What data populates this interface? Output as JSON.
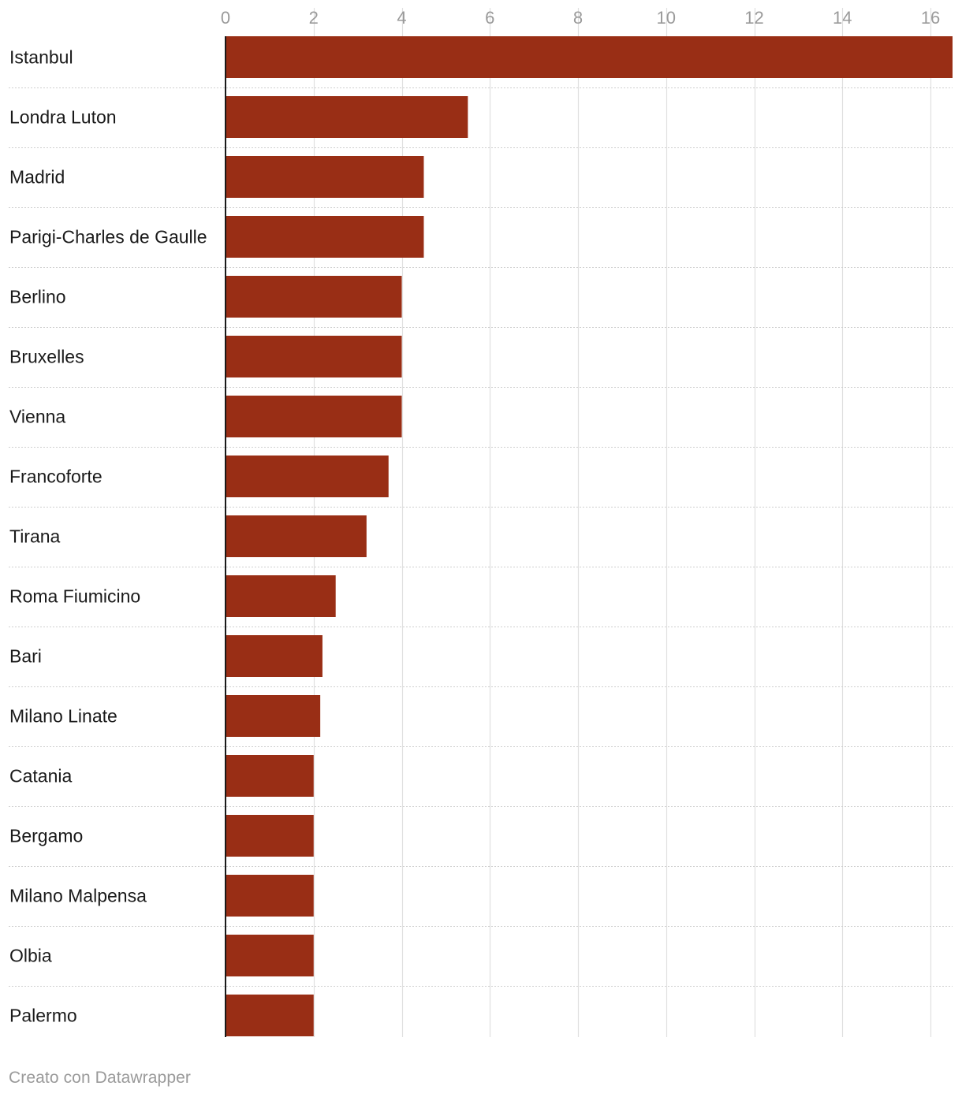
{
  "chart_data": {
    "type": "bar",
    "orientation": "horizontal",
    "categories": [
      "Istanbul",
      "Londra Luton",
      "Madrid",
      "Parigi-Charles de Gaulle",
      "Berlino",
      "Bruxelles",
      "Vienna",
      "Francoforte",
      "Tirana",
      "Roma Fiumicino",
      "Bari",
      "Milano Linate",
      "Catania",
      "Bergamo",
      "Milano Malpensa",
      "Olbia",
      "Palermo"
    ],
    "values": [
      16.5,
      5.5,
      4.5,
      4.5,
      4.0,
      4.0,
      4.0,
      3.7,
      3.2,
      2.5,
      2.2,
      2.15,
      2.0,
      2.0,
      2.0,
      2.0,
      2.0
    ],
    "xlim": [
      0,
      16.5
    ],
    "xticks": [
      0,
      2,
      4,
      6,
      8,
      10,
      12,
      14,
      16
    ],
    "tick_labels": [
      "0",
      "2",
      "4",
      "6",
      "8",
      "10",
      "12",
      "14",
      "16"
    ],
    "xaxis_position": "top",
    "grid": true,
    "bar_color": "#992e15",
    "gridline_color": "#e0e0e0",
    "separator_color": "#cfcfcf",
    "tick_label_color": "#9a9a9a",
    "category_label_color": "#1a1a1a"
  },
  "footer": {
    "credit": "Creato con Datawrapper"
  }
}
